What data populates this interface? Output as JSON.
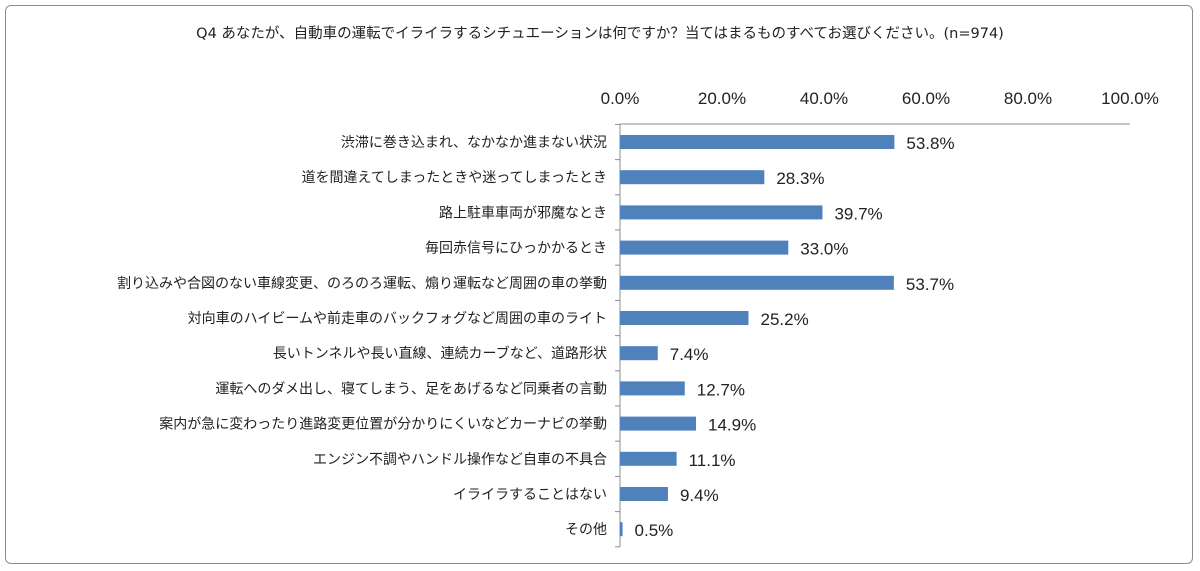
{
  "chart_data": {
    "type": "bar",
    "orientation": "horizontal",
    "title": "Q4 あなたが、自動車の運転でイライラするシチュエーションは何ですか？当てはまるものすべてお選びください。(n=974)",
    "xlabel": "",
    "ylabel": "",
    "xlim": [
      0,
      100
    ],
    "x_ticks": [
      "0.0%",
      "20.0%",
      "40.0%",
      "60.0%",
      "80.0%",
      "100.0%"
    ],
    "x_axis_position": "top",
    "grid": false,
    "bar_color": "#4f81bd",
    "categories": [
      "渋滞に巻き込まれ、なかなか進まない状況",
      "道を間違えてしまったときや迷ってしまったとき",
      "路上駐車車両が邪魔なとき",
      "毎回赤信号にひっかかるとき",
      "割り込みや合図のない車線変更、のろのろ運転、煽り運転など周囲の車の挙動",
      "対向車のハイビームや前走車のバックフォグなど周囲の車のライト",
      "長いトンネルや長い直線、連続カーブなど、道路形状",
      "運転へのダメ出し、寝てしまう、足をあげるなど同乗者の言動",
      "案内が急に変わったり進路変更位置が分かりにくいなどカーナビの挙動",
      "エンジン不調やハンドル操作など自車の不具合",
      "イライラすることはない",
      "その他"
    ],
    "values": [
      53.8,
      28.3,
      39.7,
      33.0,
      53.7,
      25.2,
      7.4,
      12.7,
      14.9,
      11.1,
      9.4,
      0.5
    ],
    "value_labels": [
      "53.8%",
      "28.3%",
      "39.7%",
      "33.0%",
      "53.7%",
      "25.2%",
      "7.4%",
      "12.7%",
      "14.9%",
      "11.1%",
      "9.4%",
      "0.5%"
    ]
  }
}
